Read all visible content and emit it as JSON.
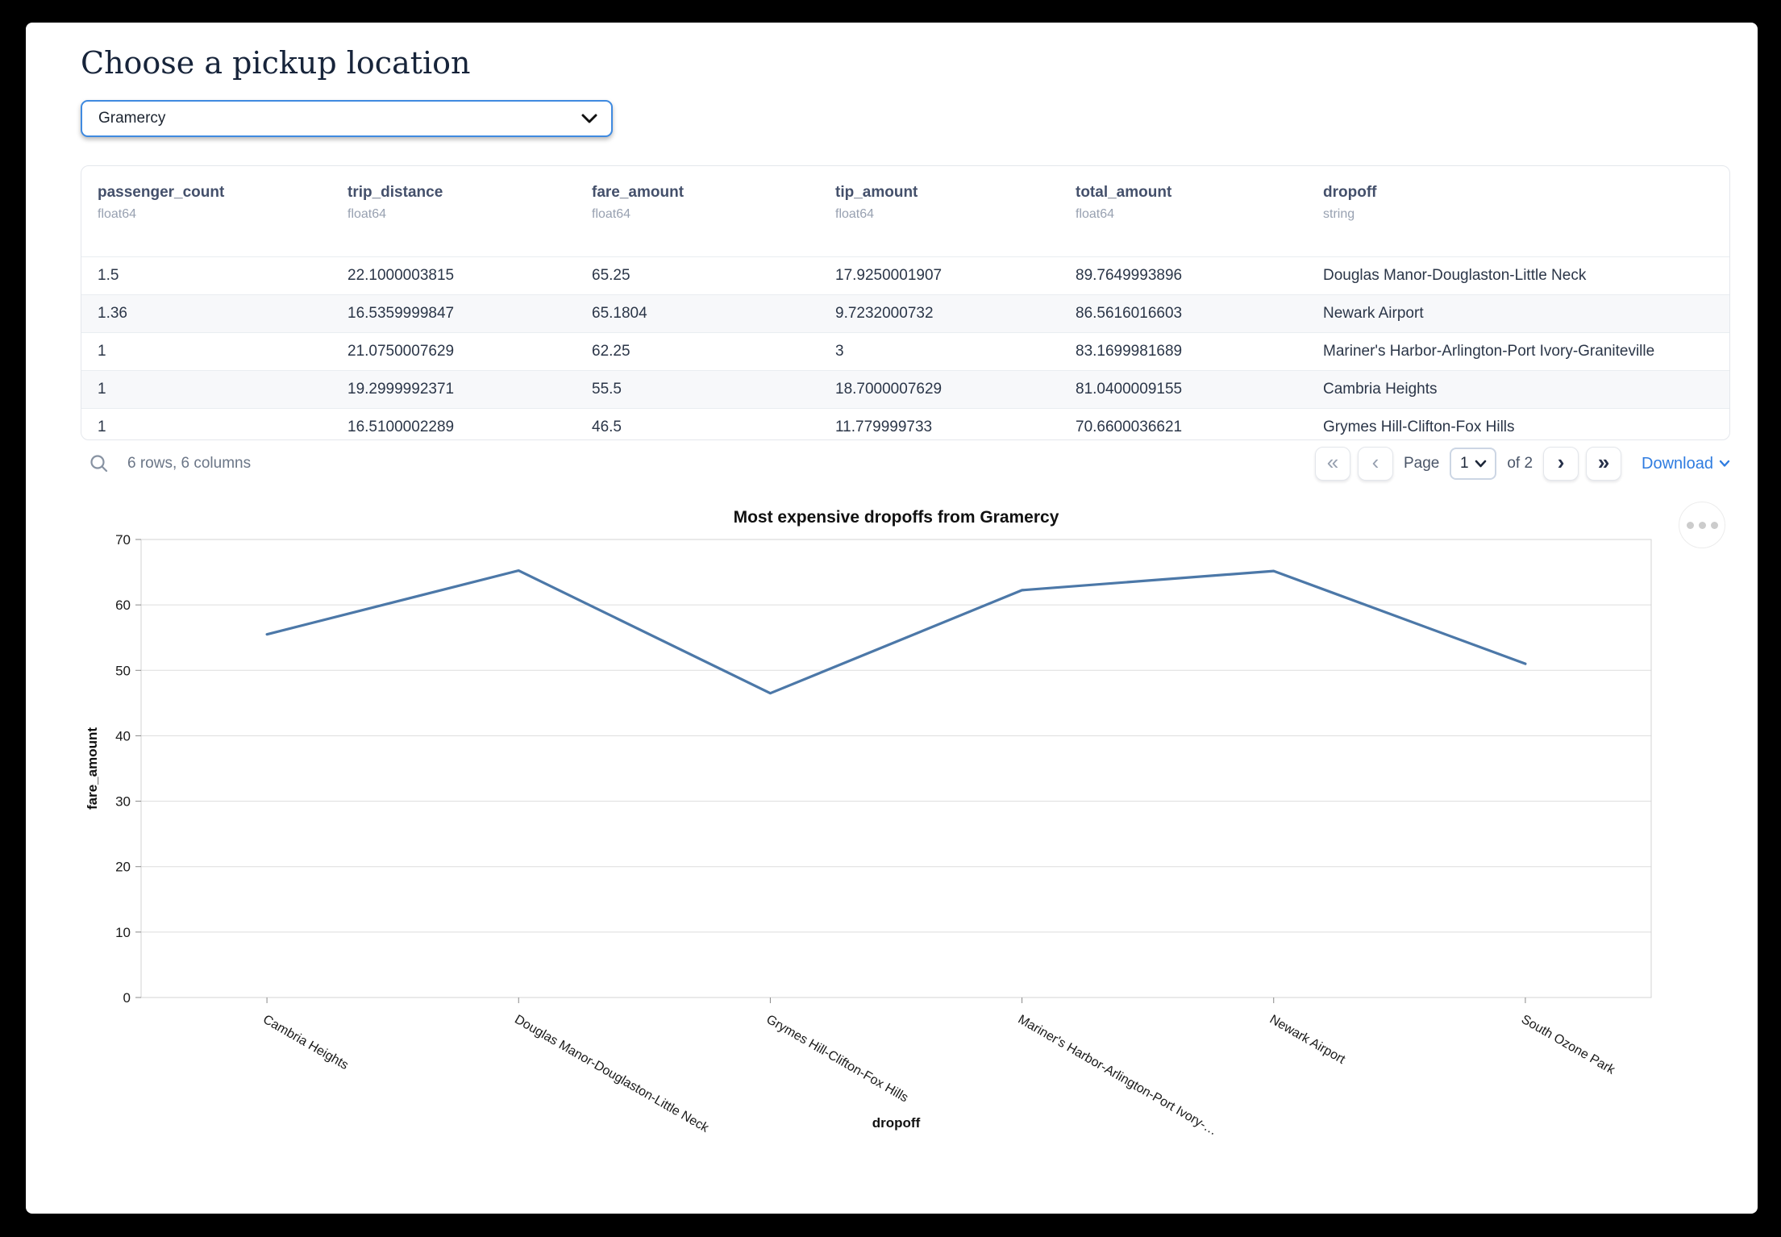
{
  "page": {
    "title": "Choose a pickup location"
  },
  "pickup_select": {
    "value": "Gramercy"
  },
  "table": {
    "columns": [
      {
        "name": "passenger_count",
        "type": "float64"
      },
      {
        "name": "trip_distance",
        "type": "float64"
      },
      {
        "name": "fare_amount",
        "type": "float64"
      },
      {
        "name": "tip_amount",
        "type": "float64"
      },
      {
        "name": "total_amount",
        "type": "float64"
      },
      {
        "name": "dropoff",
        "type": "string"
      }
    ],
    "rows": [
      [
        "1.5",
        "22.1000003815",
        "65.25",
        "17.9250001907",
        "89.7649993896",
        "Douglas Manor-Douglaston-Little Neck"
      ],
      [
        "1.36",
        "16.5359999847",
        "65.1804",
        "9.7232000732",
        "86.5616016603",
        "Newark Airport"
      ],
      [
        "1",
        "21.0750007629",
        "62.25",
        "3",
        "83.1699981689",
        "Mariner's Harbor-Arlington-Port Ivory-Graniteville"
      ],
      [
        "1",
        "19.2999992371",
        "55.5",
        "18.7000007629",
        "81.0400009155",
        "Cambria Heights"
      ],
      [
        "1",
        "16.5100002289",
        "46.5",
        "11.779999733",
        "70.6600036621",
        "Grymes Hill-Clifton-Fox Hills"
      ]
    ],
    "summary": "6 rows, 6 columns"
  },
  "pagination": {
    "first_label": "«",
    "prev_label": "‹",
    "page_label": "Page",
    "current_page": "1",
    "of_label": "of 2",
    "next_label": "›",
    "last_label": "»",
    "download_label": "Download"
  },
  "chart_data": {
    "type": "line",
    "title": "Most expensive dropoffs from Gramercy",
    "xlabel": "dropoff",
    "ylabel": "fare_amount",
    "categories": [
      "Cambria Heights",
      "Douglas Manor-Douglaston-Little Neck",
      "Grymes Hill-Clifton-Fox Hills",
      "Mariner's Harbor-Arlington-Port Ivory-…",
      "Newark Airport",
      "South Ozone Park"
    ],
    "values": [
      55.5,
      65.25,
      46.5,
      62.25,
      65.1804,
      51
    ],
    "ylim": [
      0,
      70
    ],
    "ytick_step": 10,
    "grid": true,
    "legend": "none",
    "line_color": "#4c78a8"
  },
  "colors": {
    "accent_blue": "#3f8ae0",
    "link_blue": "#2f7ce0",
    "line_blue": "#4c78a8",
    "header_text": "#44506b"
  }
}
